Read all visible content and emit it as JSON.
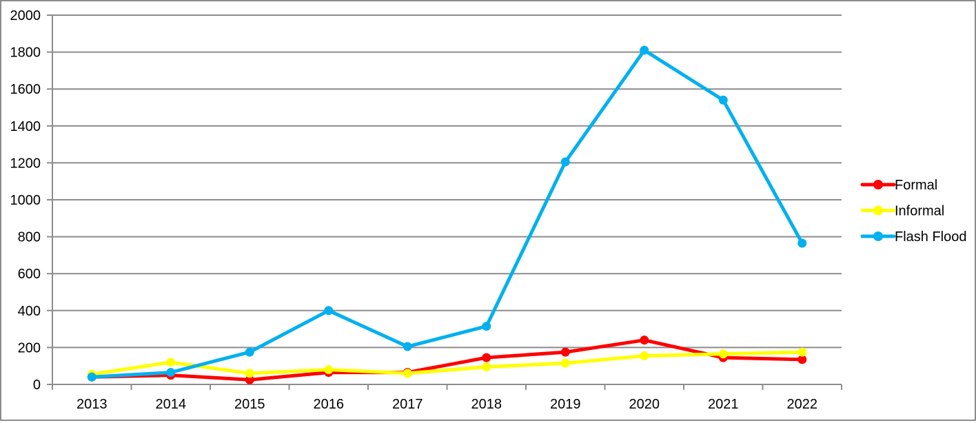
{
  "chart_data": {
    "type": "line",
    "title": "",
    "xlabel": "",
    "ylabel": "",
    "categories": [
      "2013",
      "2014",
      "2015",
      "2016",
      "2017",
      "2018",
      "2019",
      "2020",
      "2021",
      "2022"
    ],
    "series": [
      {
        "name": "Formal",
        "color": "#FF0000",
        "values": [
          40,
          50,
          25,
          65,
          65,
          145,
          175,
          240,
          145,
          135
        ]
      },
      {
        "name": "Informal",
        "color": "#FFFF00",
        "values": [
          55,
          120,
          60,
          80,
          60,
          95,
          115,
          155,
          165,
          175
        ]
      },
      {
        "name": "Flash Flood",
        "color": "#00B0F0",
        "values": [
          40,
          65,
          175,
          400,
          205,
          315,
          1205,
          1810,
          1540,
          765
        ]
      }
    ],
    "ylim": [
      0,
      2000
    ],
    "ytick_step": 200,
    "ytick_labels": [
      "0",
      "200",
      "400",
      "600",
      "800",
      "1000",
      "1200",
      "1400",
      "1600",
      "1800",
      "2000"
    ],
    "grid": true,
    "legend_position": "right",
    "legend_marker": "line-with-circle",
    "axis_color": "#8C8C8C",
    "text_color": "#000000",
    "background": "#FFFFFF",
    "border_color": "#8C8C8C"
  }
}
